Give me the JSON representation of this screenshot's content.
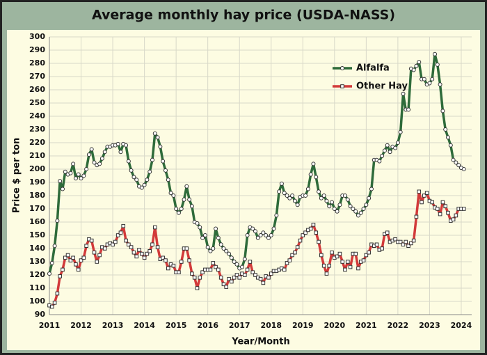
{
  "chart_data": {
    "type": "line",
    "title": "Average monthly hay price (USDA-NASS)",
    "x_label": "Year/Month",
    "y_label": "Price $ per ton",
    "xlim": [
      2011,
      2024.33
    ],
    "ylim": [
      90,
      300
    ],
    "xticks": [
      2011,
      2012,
      2013,
      2014,
      2015,
      2016,
      2017,
      2018,
      2019,
      2020,
      2021,
      2022,
      2023,
      2024
    ],
    "yticks": [
      90,
      100,
      110,
      120,
      130,
      140,
      150,
      160,
      170,
      180,
      190,
      200,
      210,
      220,
      230,
      240,
      250,
      260,
      270,
      280,
      290,
      300
    ],
    "grid": true,
    "legend": "upper-right",
    "x": [
      2011.0,
      2011.083,
      2011.167,
      2011.25,
      2011.333,
      2011.417,
      2011.5,
      2011.583,
      2011.667,
      2011.75,
      2011.833,
      2011.917,
      2012.0,
      2012.083,
      2012.167,
      2012.25,
      2012.333,
      2012.417,
      2012.5,
      2012.583,
      2012.667,
      2012.75,
      2012.833,
      2012.917,
      2013.0,
      2013.083,
      2013.167,
      2013.25,
      2013.333,
      2013.417,
      2013.5,
      2013.583,
      2013.667,
      2013.75,
      2013.833,
      2013.917,
      2014.0,
      2014.083,
      2014.167,
      2014.25,
      2014.333,
      2014.417,
      2014.5,
      2014.583,
      2014.667,
      2014.75,
      2014.833,
      2014.917,
      2015.0,
      2015.083,
      2015.167,
      2015.25,
      2015.333,
      2015.417,
      2015.5,
      2015.583,
      2015.667,
      2015.75,
      2015.833,
      2015.917,
      2016.0,
      2016.083,
      2016.167,
      2016.25,
      2016.333,
      2016.417,
      2016.5,
      2016.583,
      2016.667,
      2016.75,
      2016.833,
      2016.917,
      2017.0,
      2017.083,
      2017.167,
      2017.25,
      2017.333,
      2017.417,
      2017.5,
      2017.583,
      2017.667,
      2017.75,
      2017.833,
      2017.917,
      2018.0,
      2018.083,
      2018.167,
      2018.25,
      2018.333,
      2018.417,
      2018.5,
      2018.583,
      2018.667,
      2018.75,
      2018.833,
      2018.917,
      2019.0,
      2019.083,
      2019.167,
      2019.25,
      2019.333,
      2019.417,
      2019.5,
      2019.583,
      2019.667,
      2019.75,
      2019.833,
      2019.917,
      2020.0,
      2020.083,
      2020.167,
      2020.25,
      2020.333,
      2020.417,
      2020.5,
      2020.583,
      2020.667,
      2020.75,
      2020.833,
      2020.917,
      2021.0,
      2021.083,
      2021.167,
      2021.25,
      2021.333,
      2021.417,
      2021.5,
      2021.583,
      2021.667,
      2021.75,
      2021.833,
      2021.917,
      2022.0,
      2022.083,
      2022.167,
      2022.25,
      2022.333,
      2022.417,
      2022.5,
      2022.583,
      2022.667,
      2022.75,
      2022.833,
      2022.917,
      2023.0,
      2023.083,
      2023.167,
      2023.25,
      2023.333,
      2023.417,
      2023.5,
      2023.583,
      2023.667,
      2023.75,
      2023.833,
      2023.917,
      2024.0,
      2024.083
    ],
    "series": [
      {
        "name": "Alfalfa",
        "color": "#2e6b3a",
        "marker": "circle",
        "values": [
          121,
          129,
          142,
          161,
          191,
          185,
          198,
          196,
          197,
          204,
          193,
          196,
          193,
          195,
          200,
          211,
          215,
          205,
          203,
          204,
          208,
          213,
          217,
          217,
          218,
          218,
          219,
          213,
          219,
          218,
          206,
          199,
          194,
          192,
          187,
          186,
          188,
          192,
          198,
          207,
          227,
          224,
          217,
          206,
          199,
          192,
          182,
          180,
          170,
          167,
          170,
          177,
          187,
          177,
          172,
          160,
          159,
          156,
          148,
          150,
          141,
          138,
          140,
          155,
          148,
          143,
          140,
          138,
          136,
          133,
          130,
          128,
          125,
          126,
          132,
          150,
          156,
          155,
          153,
          148,
          150,
          152,
          150,
          148,
          150,
          155,
          165,
          183,
          189,
          182,
          180,
          178,
          180,
          176,
          173,
          179,
          180,
          180,
          185,
          196,
          204,
          194,
          183,
          178,
          180,
          176,
          172,
          175,
          170,
          168,
          173,
          180,
          180,
          177,
          172,
          170,
          168,
          165,
          167,
          170,
          173,
          178,
          185,
          207,
          207,
          206,
          210,
          214,
          218,
          213,
          217,
          216,
          220,
          228,
          257,
          245,
          245,
          276,
          275,
          278,
          281,
          268,
          268,
          264,
          265,
          268,
          287,
          279,
          264,
          244,
          230,
          224,
          218,
          207,
          205,
          203,
          201,
          200
        ]
      },
      {
        "name": "Other Hay",
        "color": "#d23a3a",
        "marker": "square",
        "values": [
          97,
          96,
          99,
          106,
          119,
          124,
          133,
          135,
          131,
          133,
          128,
          124,
          131,
          133,
          142,
          147,
          146,
          137,
          130,
          135,
          141,
          140,
          143,
          144,
          143,
          145,
          150,
          152,
          157,
          146,
          143,
          141,
          137,
          134,
          139,
          136,
          133,
          136,
          138,
          143,
          156,
          141,
          132,
          133,
          131,
          125,
          128,
          127,
          122,
          122,
          130,
          140,
          140,
          131,
          121,
          118,
          110,
          118,
          122,
          124,
          124,
          124,
          129,
          126,
          124,
          118,
          113,
          111,
          117,
          115,
          118,
          120,
          118,
          121,
          120,
          124,
          130,
          122,
          120,
          118,
          117,
          114,
          119,
          118,
          121,
          123,
          123,
          124,
          125,
          124,
          129,
          131,
          135,
          137,
          141,
          146,
          150,
          152,
          154,
          155,
          158,
          152,
          145,
          135,
          127,
          121,
          127,
          137,
          133,
          134,
          136,
          130,
          124,
          130,
          126,
          136,
          136,
          125,
          130,
          131,
          135,
          137,
          143,
          142,
          143,
          139,
          140,
          151,
          152,
          145,
          146,
          147,
          145,
          145,
          143,
          145,
          142,
          144,
          146,
          164,
          183,
          175,
          180,
          182,
          176,
          175,
          171,
          170,
          166,
          175,
          172,
          167,
          161,
          162,
          165,
          170,
          170,
          170
        ]
      }
    ]
  }
}
